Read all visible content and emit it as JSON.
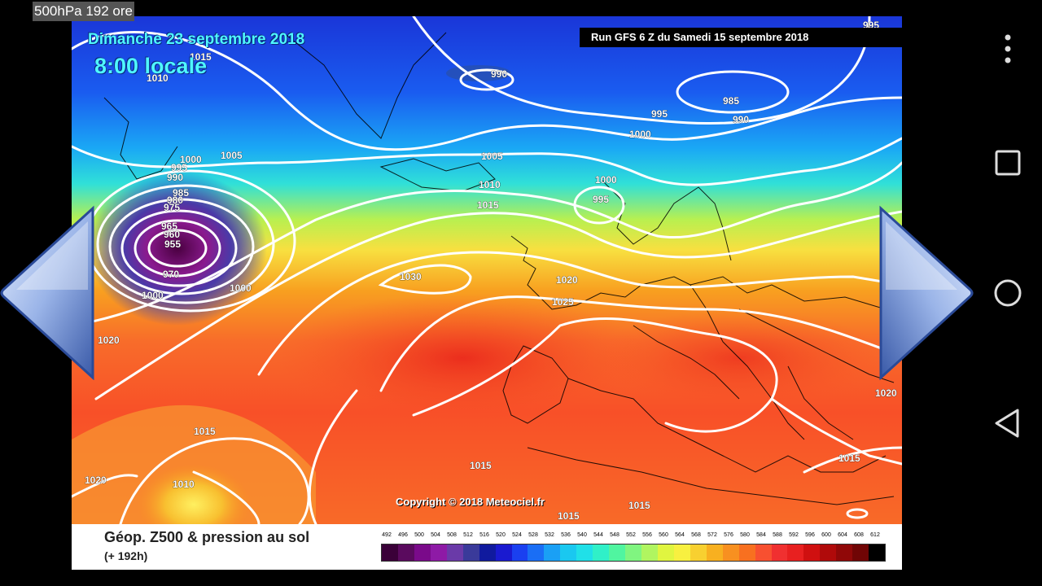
{
  "app": {
    "title": "500hPa 192 ore"
  },
  "map": {
    "date": "Dimanche 23 septembre 2018",
    "time": "8:00 locale",
    "run": "Run GFS 6 Z du Samedi 15 septembre 2018",
    "copyright": "Copyright © 2018 Meteociel.fr",
    "isobar_labels": [
      "995",
      "1015",
      "1010",
      "990",
      "985",
      "995",
      "990",
      "1000",
      "1005",
      "1000",
      "995",
      "990",
      "985",
      "980",
      "975",
      "965",
      "960",
      "955",
      "970",
      "1000",
      "1000",
      "1005",
      "1010",
      "1015",
      "1000",
      "995",
      "1030",
      "1020",
      "1025",
      "1020",
      "1020",
      "1015",
      "1015",
      "1020",
      "1010",
      "1015",
      "1015",
      "1015"
    ]
  },
  "legend": {
    "title": "Géop. Z500 & pression au sol",
    "subtitle": "(+ 192h)",
    "ticks": [
      "492",
      "496",
      "500",
      "504",
      "508",
      "512",
      "516",
      "520",
      "524",
      "528",
      "532",
      "536",
      "540",
      "544",
      "548",
      "552",
      "556",
      "560",
      "564",
      "568",
      "572",
      "576",
      "580",
      "584",
      "588",
      "592",
      "596",
      "600",
      "604",
      "608",
      "612"
    ],
    "colors": [
      "#3a0038",
      "#5a0a5e",
      "#7a0a8a",
      "#8e1aa6",
      "#6a3aa8",
      "#3a3a9a",
      "#101a9e",
      "#1a1ad0",
      "#1a40f0",
      "#1a6ef5",
      "#1aa0f5",
      "#1ac8f0",
      "#20e0e8",
      "#30f0c8",
      "#50f5a0",
      "#80f580",
      "#b0f560",
      "#e0f540",
      "#f8f040",
      "#f8d030",
      "#f8b020",
      "#f89020",
      "#f87020",
      "#f85030",
      "#f03030",
      "#e82020",
      "#d01010",
      "#b00a0a",
      "#900808",
      "#700505",
      "#000000"
    ]
  },
  "navigation": {
    "prev_icon": "arrow-left-icon",
    "next_icon": "arrow-right-icon"
  },
  "system_nav": {
    "buttons": [
      "overflow-menu-icon",
      "recents-icon",
      "home-icon",
      "back-icon"
    ]
  }
}
